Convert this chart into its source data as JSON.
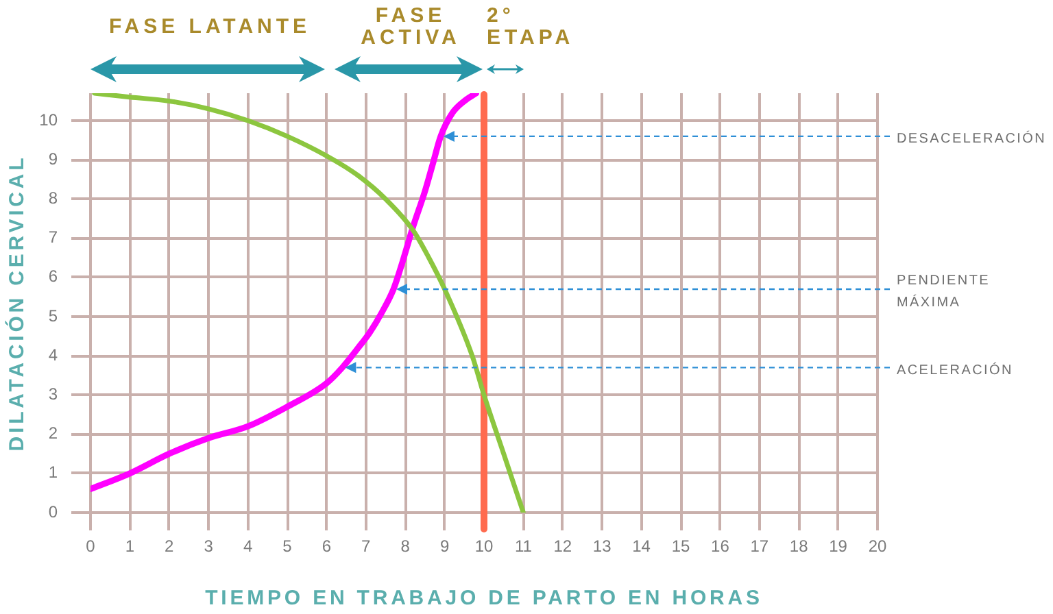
{
  "chart_data": {
    "type": "line",
    "xlabel": "TIEMPO EN TRABAJO DE PARTO EN HORAS",
    "ylabel": "DILATACIÓN CERVICAL",
    "xlim": [
      0,
      20
    ],
    "xticks": [
      0,
      1,
      2,
      3,
      4,
      5,
      6,
      7,
      8,
      9,
      10,
      11,
      12,
      13,
      14,
      15,
      16,
      17,
      18,
      19,
      20
    ],
    "ylim": [
      0,
      10.7
    ],
    "yticks": [
      0,
      1,
      2,
      3,
      4,
      5,
      6,
      7,
      8,
      9,
      10
    ],
    "grid": true,
    "series": [
      {
        "color": "#8cc63f",
        "x": [
          0.1,
          1,
          2,
          3,
          4,
          5,
          6,
          6.8,
          7.5,
          8.2,
          8.6,
          9,
          9.7,
          10,
          10.5,
          11
        ],
        "values": [
          10.7,
          10.6,
          10.5,
          10.3,
          10,
          9.6,
          9.1,
          8.6,
          8.0,
          7.2,
          6.5,
          5.7,
          4.0,
          3.0,
          1.5,
          0
        ]
      },
      {
        "color": "#ff00ff",
        "x": [
          0,
          1,
          2,
          3,
          4,
          5,
          6,
          6.4,
          6.8,
          7.1,
          7.4,
          7.7,
          7.9,
          8.2,
          8.5,
          8.7,
          8.9,
          9.2,
          9.5,
          9.8
        ],
        "values": [
          0.6,
          1.0,
          1.5,
          1.9,
          2.2,
          2.7,
          3.3,
          3.7,
          4.2,
          4.6,
          5.1,
          5.7,
          6.3,
          7.3,
          8.2,
          8.9,
          9.6,
          10.2,
          10.5,
          10.7
        ]
      }
    ],
    "ref_lines": [
      {
        "axis": "x",
        "value": 10,
        "color": "#ff6b4f"
      }
    ],
    "annotations": [
      "FASE LATANTE",
      "FASE ACTIVA",
      "2° ETAPA",
      {
        "text": "DESACELERACIÓN",
        "x": 8.9,
        "y": 9.6
      },
      {
        "text": "PENDIENTE MÁXIMA",
        "x": 7.7,
        "y": 5.7
      },
      {
        "text": "ACELERACIÓN",
        "x": 6.4,
        "y": 3.7
      }
    ]
  }
}
